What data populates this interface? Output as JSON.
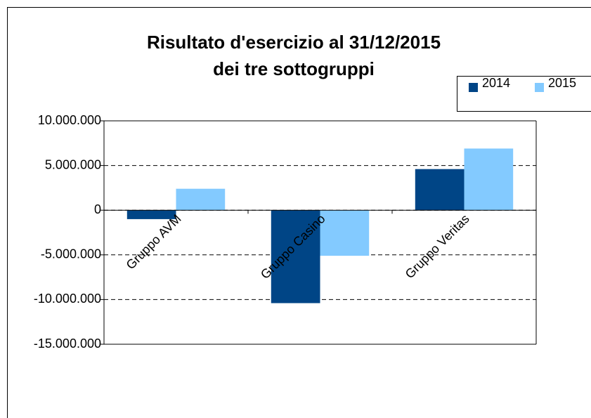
{
  "chart_data": {
    "type": "bar",
    "title": [
      "Risultato d'esercizio al 31/12/2015",
      "dei tre sottogruppi"
    ],
    "categories": [
      "Gruppo AVM",
      "Gruppo Casino",
      "Gruppo Veritas"
    ],
    "series": [
      {
        "name": "2014",
        "color": "#004586",
        "values": [
          -1000000,
          -10400000,
          4600000
        ]
      },
      {
        "name": "2015",
        "color": "#83caff",
        "values": [
          2400000,
          -5100000,
          6900000
        ]
      }
    ],
    "ylim": [
      -15000000,
      10000000
    ],
    "yticks": [
      {
        "value": -15000000,
        "label": "-15.000.000"
      },
      {
        "value": -10000000,
        "label": "-10.000.000"
      },
      {
        "value": -5000000,
        "label": "-5.000.000"
      },
      0,
      {
        "value": 5000000,
        "label": "5.000.000"
      },
      {
        "value": 10000000,
        "label": "10.000.000"
      }
    ],
    "grid": true,
    "legend": "top-right"
  }
}
